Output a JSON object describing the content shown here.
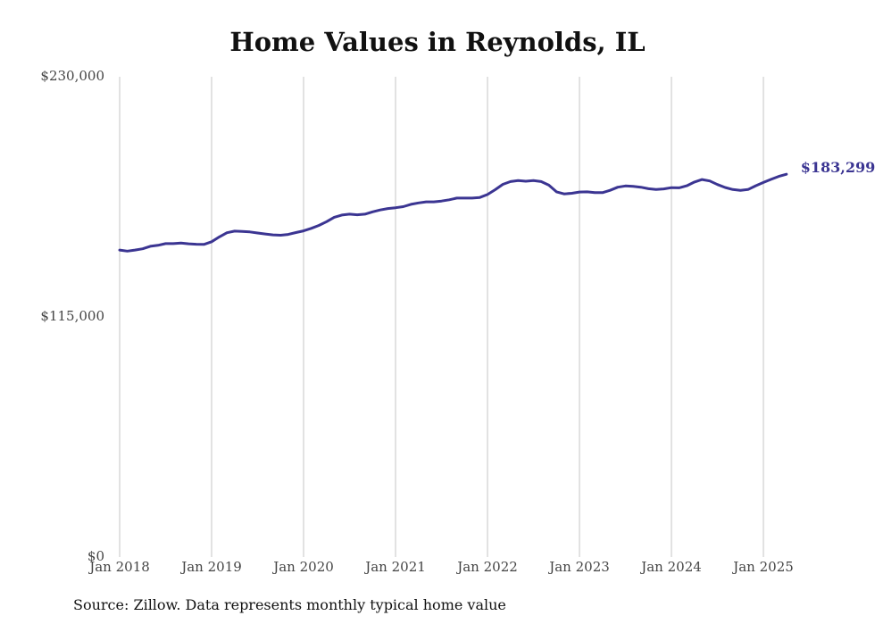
{
  "chart_data": {
    "type": "line",
    "title": "Home Values in Reynolds, IL",
    "source": "Source: Zillow. Data represents monthly typical home value",
    "ylim": [
      0,
      230000
    ],
    "yticks": [
      {
        "value": 0,
        "label": "$0"
      },
      {
        "value": 115000,
        "label": "$115,000"
      },
      {
        "value": 230000,
        "label": "$230,000"
      }
    ],
    "xticks": [
      {
        "date": "2018-01",
        "label": "Jan 2018"
      },
      {
        "date": "2019-01",
        "label": "Jan 2019"
      },
      {
        "date": "2020-01",
        "label": "Jan 2020"
      },
      {
        "date": "2021-01",
        "label": "Jan 2021"
      },
      {
        "date": "2022-01",
        "label": "Jan 2022"
      },
      {
        "date": "2023-01",
        "label": "Jan 2023"
      },
      {
        "date": "2024-01",
        "label": "Jan 2024"
      },
      {
        "date": "2025-01",
        "label": "Jan 2025"
      }
    ],
    "grid": "vertical",
    "series": [
      {
        "color": "#3b3592",
        "end_label": "$183,299",
        "points": [
          [
            "2018-01",
            147000
          ],
          [
            "2018-02",
            146500
          ],
          [
            "2018-03",
            147000
          ],
          [
            "2018-04",
            147600
          ],
          [
            "2018-05",
            148800
          ],
          [
            "2018-06",
            149300
          ],
          [
            "2018-07",
            150100
          ],
          [
            "2018-08",
            150100
          ],
          [
            "2018-09",
            150400
          ],
          [
            "2018-10",
            150000
          ],
          [
            "2018-11",
            149800
          ],
          [
            "2018-12",
            149700
          ],
          [
            "2019-01",
            151000
          ],
          [
            "2019-02",
            153300
          ],
          [
            "2019-03",
            155300
          ],
          [
            "2019-04",
            156100
          ],
          [
            "2019-05",
            155900
          ],
          [
            "2019-06",
            155700
          ],
          [
            "2019-07",
            155200
          ],
          [
            "2019-08",
            154700
          ],
          [
            "2019-09",
            154300
          ],
          [
            "2019-10",
            154100
          ],
          [
            "2019-11",
            154500
          ],
          [
            "2019-12",
            155400
          ],
          [
            "2020-01",
            156200
          ],
          [
            "2020-02",
            157400
          ],
          [
            "2020-03",
            158800
          ],
          [
            "2020-04",
            160600
          ],
          [
            "2020-05",
            162700
          ],
          [
            "2020-06",
            163800
          ],
          [
            "2020-07",
            164200
          ],
          [
            "2020-08",
            163900
          ],
          [
            "2020-09",
            164200
          ],
          [
            "2020-10",
            165300
          ],
          [
            "2020-11",
            166200
          ],
          [
            "2020-12",
            166900
          ],
          [
            "2021-01",
            167300
          ],
          [
            "2021-02",
            167800
          ],
          [
            "2021-03",
            168900
          ],
          [
            "2021-04",
            169600
          ],
          [
            "2021-05",
            170100
          ],
          [
            "2021-06",
            170100
          ],
          [
            "2021-07",
            170500
          ],
          [
            "2021-08",
            171100
          ],
          [
            "2021-09",
            171900
          ],
          [
            "2021-10",
            171900
          ],
          [
            "2021-11",
            171900
          ],
          [
            "2021-12",
            172200
          ],
          [
            "2022-01",
            173600
          ],
          [
            "2022-02",
            175900
          ],
          [
            "2022-03",
            178500
          ],
          [
            "2022-04",
            179800
          ],
          [
            "2022-05",
            180300
          ],
          [
            "2022-06",
            180000
          ],
          [
            "2022-07",
            180300
          ],
          [
            "2022-08",
            179800
          ],
          [
            "2022-09",
            178100
          ],
          [
            "2022-10",
            174900
          ],
          [
            "2022-11",
            173900
          ],
          [
            "2022-12",
            174200
          ],
          [
            "2023-01",
            174800
          ],
          [
            "2023-02",
            174900
          ],
          [
            "2023-03",
            174500
          ],
          [
            "2023-04",
            174500
          ],
          [
            "2023-05",
            175600
          ],
          [
            "2023-06",
            177100
          ],
          [
            "2023-07",
            177700
          ],
          [
            "2023-08",
            177500
          ],
          [
            "2023-09",
            177100
          ],
          [
            "2023-10",
            176400
          ],
          [
            "2023-11",
            176000
          ],
          [
            "2023-12",
            176300
          ],
          [
            "2024-01",
            176900
          ],
          [
            "2024-02",
            176800
          ],
          [
            "2024-03",
            177800
          ],
          [
            "2024-04",
            179600
          ],
          [
            "2024-05",
            180800
          ],
          [
            "2024-06",
            180100
          ],
          [
            "2024-07",
            178400
          ],
          [
            "2024-08",
            177000
          ],
          [
            "2024-09",
            176000
          ],
          [
            "2024-10",
            175600
          ],
          [
            "2024-11",
            176000
          ],
          [
            "2024-12",
            177800
          ],
          [
            "2025-01",
            179400
          ],
          [
            "2025-02",
            180900
          ],
          [
            "2025-03",
            182300
          ],
          [
            "2025-04",
            183299
          ]
        ]
      }
    ]
  }
}
